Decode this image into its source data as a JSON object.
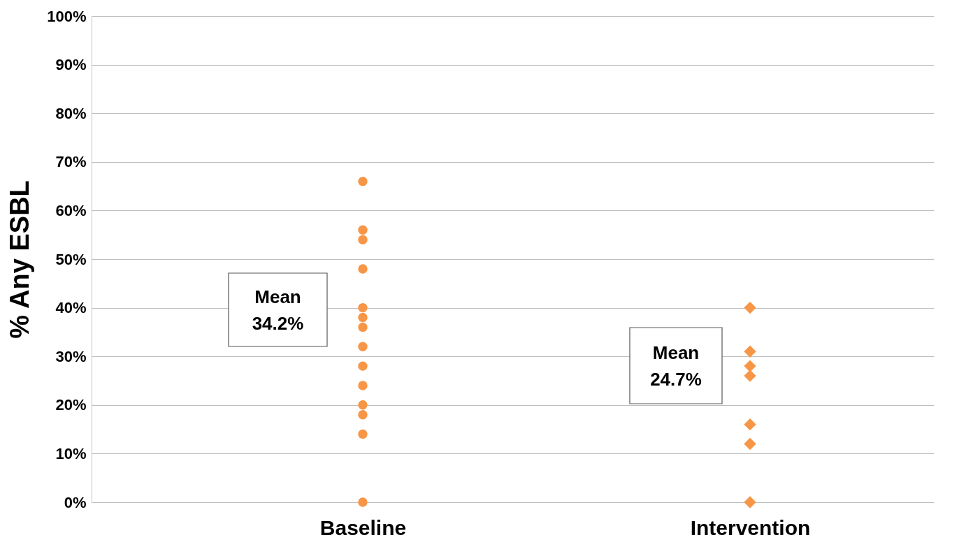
{
  "chart_data": {
    "type": "scatter",
    "ylabel": "% Any ESBL",
    "categories": [
      "Baseline",
      "Intervention"
    ],
    "series": [
      {
        "color": "#f79646",
        "marker": "circle",
        "x": [
          "Baseline",
          "Baseline",
          "Baseline",
          "Baseline",
          "Baseline",
          "Baseline",
          "Baseline",
          "Baseline",
          "Baseline",
          "Baseline",
          "Baseline",
          "Baseline",
          "Baseline",
          "Baseline"
        ],
        "values": [
          66,
          56,
          54,
          48,
          40,
          38,
          36,
          32,
          28,
          24,
          20,
          18,
          14,
          0
        ]
      },
      {
        "color": "#f79646",
        "marker": "diamond",
        "x": [
          "Intervention",
          "Intervention",
          "Intervention",
          "Intervention",
          "Intervention",
          "Intervention",
          "Intervention"
        ],
        "values": [
          40,
          31,
          28,
          26,
          16,
          12,
          0
        ]
      }
    ],
    "ylim": [
      0,
      100
    ],
    "yticks": [
      {
        "value": 0,
        "label": "0%"
      },
      {
        "value": 10,
        "label": "10%"
      },
      {
        "value": 20,
        "label": "20%"
      },
      {
        "value": 30,
        "label": "30%"
      },
      {
        "value": 40,
        "label": "40%"
      },
      {
        "value": 50,
        "label": "50%"
      },
      {
        "value": 60,
        "label": "60%"
      },
      {
        "value": 70,
        "label": "70%"
      },
      {
        "value": 80,
        "label": "80%"
      },
      {
        "value": 90,
        "label": "90%"
      },
      {
        "value": 100,
        "label": "100%"
      }
    ],
    "grid": "y",
    "annotations": [
      "Mean 34.2%",
      "Mean 24.7%"
    ]
  }
}
